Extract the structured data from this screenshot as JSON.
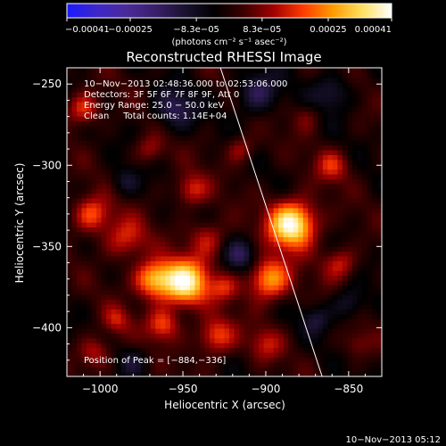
{
  "chart_data": {
    "type": "heatmap",
    "title": "Reconstructed RHESSI Image",
    "xlabel": "Heliocentric X (arcsec)",
    "ylabel": "Heliocentric Y (arcsec)",
    "xlim": [
      -1020,
      -830
    ],
    "ylim": [
      -430,
      -240
    ],
    "xticks": [
      -1000,
      -950,
      -900,
      -850
    ],
    "yticks": [
      -250,
      -300,
      -350,
      -400
    ],
    "xtick_labels": [
      "−1000",
      "−950",
      "−900",
      "−850"
    ],
    "ytick_labels": [
      "−250",
      "−300",
      "−350",
      "−400"
    ],
    "colorbar": {
      "min": -0.00041,
      "max": 0.00041,
      "tick_values": [
        -0.00041,
        -0.00025,
        -8.3e-05,
        8.3e-05,
        0.00025,
        0.00041
      ],
      "tick_labels": [
        "−0.00041",
        "−0.00025",
        "−8.3e−05",
        "8.3e−05",
        "0.00025",
        "0.00041"
      ],
      "unit_label": "(photons cm⁻² s⁻¹ asec⁻²)"
    },
    "annotations": [
      "10−Nov−2013 02:48:36.000 to 02:53:06.000",
      "Detectors: 3F 5F 6F 7F 8F 9F, Att 0",
      "Energy Range: 25.0 − 50.0 keV",
      "Clean     Total counts: 1.14E+04"
    ],
    "peak_label": "Position of Peak = [−884,−336]",
    "peak": {
      "x": -884,
      "y": -336
    },
    "limb_line": {
      "x1": -928,
      "y1": -238,
      "x2": -866,
      "y2": -430
    },
    "sources": [
      {
        "x": -884,
        "y": -336,
        "amp": 0.00041,
        "sigma": 10
      },
      {
        "x": -949,
        "y": -372,
        "amp": 0.00038,
        "sigma": 10
      },
      {
        "x": -968,
        "y": -370,
        "amp": 0.00028,
        "sigma": 8
      },
      {
        "x": -898,
        "y": -370,
        "amp": 0.00028,
        "sigma": 9
      },
      {
        "x": -1005,
        "y": -330,
        "amp": 0.0002,
        "sigma": 8
      },
      {
        "x": -1010,
        "y": -265,
        "amp": 0.00018,
        "sigma": 7
      },
      {
        "x": -985,
        "y": -345,
        "amp": 0.00016,
        "sigma": 9
      },
      {
        "x": -930,
        "y": -405,
        "amp": 0.0002,
        "sigma": 8
      },
      {
        "x": -945,
        "y": -315,
        "amp": 0.00016,
        "sigma": 7
      },
      {
        "x": -962,
        "y": -398,
        "amp": 0.00018,
        "sigma": 7
      },
      {
        "x": -935,
        "y": -345,
        "amp": 0.00014,
        "sigma": 8
      },
      {
        "x": -855,
        "y": -360,
        "amp": 0.00015,
        "sigma": 7
      },
      {
        "x": -860,
        "y": -300,
        "amp": 0.00014,
        "sigma": 7
      },
      {
        "x": -1003,
        "y": -415,
        "amp": 0.00014,
        "sigma": 7
      },
      {
        "x": -915,
        "y": -290,
        "amp": 0.00012,
        "sigma": 6
      },
      {
        "x": -900,
        "y": -410,
        "amp": 0.00012,
        "sigma": 7
      },
      {
        "x": -970,
        "y": -290,
        "amp": 0.00011,
        "sigma": 6
      },
      {
        "x": -875,
        "y": -270,
        "amp": 8e-05,
        "sigma": 6
      },
      {
        "x": -990,
        "y": -395,
        "amp": 0.00012,
        "sigma": 6
      },
      {
        "x": -845,
        "y": -410,
        "amp": 8e-05,
        "sigma": 6
      },
      {
        "x": -925,
        "y": -375,
        "amp": 0.00012,
        "sigma": 6
      },
      {
        "x": -955,
        "y": -265,
        "amp": -0.00015,
        "sigma": 9
      },
      {
        "x": -905,
        "y": -255,
        "amp": -0.00016,
        "sigma": 9
      },
      {
        "x": -860,
        "y": -255,
        "amp": -0.00012,
        "sigma": 8
      },
      {
        "x": -915,
        "y": -355,
        "amp": -0.00014,
        "sigma": 7
      },
      {
        "x": -850,
        "y": -385,
        "amp": -0.00012,
        "sigma": 7
      },
      {
        "x": -985,
        "y": -310,
        "amp": -0.0001,
        "sigma": 6
      },
      {
        "x": -870,
        "y": -395,
        "amp": -0.0001,
        "sigma": 6
      },
      {
        "x": -980,
        "y": -420,
        "amp": -9e-05,
        "sigma": 6
      }
    ],
    "colormap_stops": [
      "#1a1aff",
      "#3d27c8",
      "#4a2a9a",
      "#3a1f6a",
      "#1a1230",
      "#000000",
      "#3c0000",
      "#a00000",
      "#ff3a00",
      "#ff9a00",
      "#ffe060",
      "#ffffff"
    ]
  },
  "footer": {
    "timestamp": "10−Nov−2013 05:12"
  }
}
